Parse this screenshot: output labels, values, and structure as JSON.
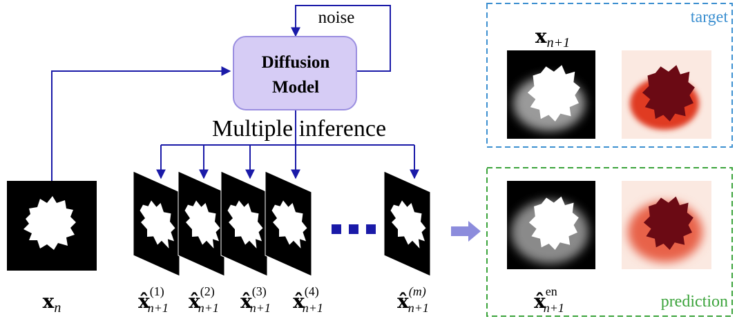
{
  "diagram": {
    "model_line1": "Diffusion",
    "model_line2": "Model",
    "noise_label": "noise",
    "inference_label": "Multiple inference",
    "input_label_base": "x",
    "input_label_sub": "n",
    "sample_base": "x̂",
    "sample_sub": "n+1",
    "sample_sups": [
      "(1)",
      "(2)",
      "(3)",
      "(4)",
      "(m)"
    ],
    "target_label": "target",
    "target_var_base": "x",
    "target_var_sub": "n+1",
    "prediction_label": "prediction",
    "ensemble_base": "x̂",
    "ensemble_sup": "en",
    "ensemble_sub": "n+1"
  },
  "colors": {
    "arrow": "#1a1aa8",
    "model_fill": "#d6ccf5",
    "model_stroke": "#9a8ee0",
    "target_border": "#3b8fd0",
    "target_text": "#3b8fd0",
    "prediction_border": "#3aa33a",
    "prediction_text": "#3aa33a",
    "transfer_arrow": "#8c8cdc",
    "heat_dark": "#6b0a14",
    "heat_light": "#fbe9e1"
  }
}
